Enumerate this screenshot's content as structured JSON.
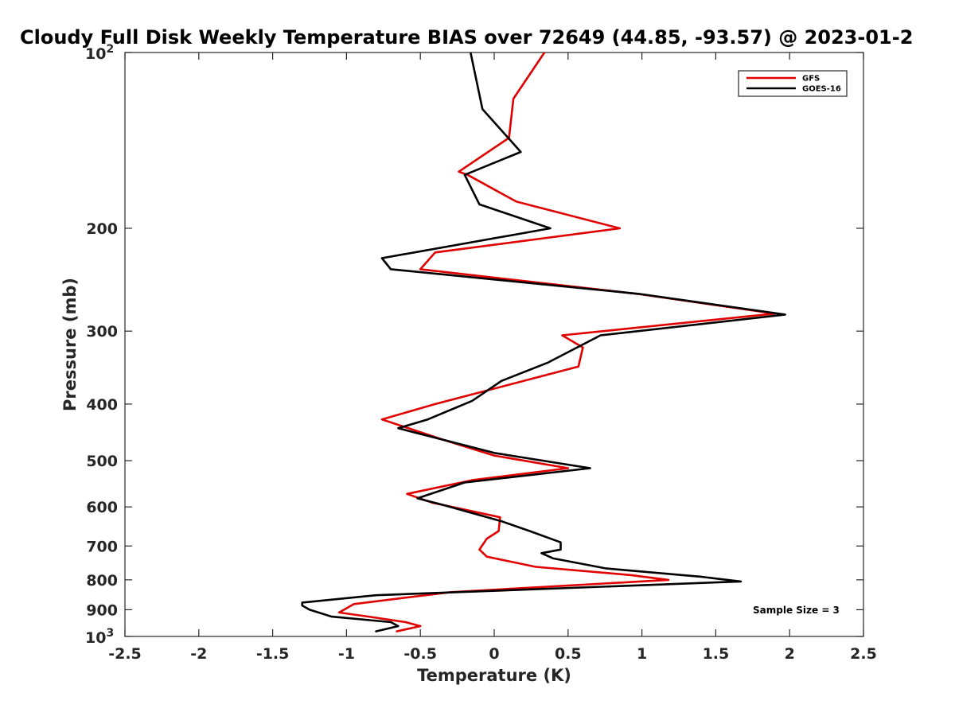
{
  "chart_data": {
    "type": "line",
    "title": "Cloudy Full Disk Weekly Temperature BIAS over 72649 (44.85, -93.57) @ 2023-01-2",
    "xlabel": "Temperature (K)",
    "ylabel": "Pressure (mb)",
    "xlim": [
      -2.5,
      2.5
    ],
    "ylim": [
      100,
      1000
    ],
    "y_scale": "log",
    "y_reversed": true,
    "x_ticks": [
      "-2.5",
      "-2",
      "-1.5",
      "-1",
      "-0.5",
      "0",
      "0.5",
      "1",
      "1.5",
      "2",
      "2.5"
    ],
    "y_ticks": [
      {
        "value": 100,
        "base": "10",
        "exp": "2"
      },
      {
        "value": 200,
        "label": "200"
      },
      {
        "value": 300,
        "label": "300"
      },
      {
        "value": 400,
        "label": "400"
      },
      {
        "value": 500,
        "label": "500"
      },
      {
        "value": 600,
        "label": "600"
      },
      {
        "value": 700,
        "label": "700"
      },
      {
        "value": 800,
        "label": "800"
      },
      {
        "value": 900,
        "label": "900"
      },
      {
        "value": 1000,
        "base": "10",
        "exp": "3"
      }
    ],
    "legend": "top-right",
    "grid": false,
    "annotation": "Sample Size = 3",
    "series": [
      {
        "name": "GFS",
        "color": "#e00000",
        "points": [
          [
            0.34,
            100
          ],
          [
            0.13,
            120
          ],
          [
            0.1,
            140
          ],
          [
            -0.24,
            160
          ],
          [
            -0.18,
            162
          ],
          [
            0.15,
            180
          ],
          [
            0.85,
            200
          ],
          [
            -0.4,
            220
          ],
          [
            -0.5,
            235
          ],
          [
            0.97,
            259
          ],
          [
            1.9,
            280
          ],
          [
            0.46,
            305
          ],
          [
            0.6,
            320
          ],
          [
            0.57,
            345
          ],
          [
            -0.4,
            400
          ],
          [
            -0.76,
            425
          ],
          [
            -0.35,
            460
          ],
          [
            0.0,
            490
          ],
          [
            0.5,
            515
          ],
          [
            -0.15,
            540
          ],
          [
            -0.59,
            570
          ],
          [
            -0.42,
            590
          ],
          [
            0.04,
            625
          ],
          [
            0.03,
            660
          ],
          [
            -0.05,
            680
          ],
          [
            -0.1,
            710
          ],
          [
            -0.05,
            730
          ],
          [
            0.28,
            760
          ],
          [
            0.92,
            785
          ],
          [
            1.18,
            800
          ],
          [
            -0.3,
            840
          ],
          [
            -0.95,
            880
          ],
          [
            -1.05,
            910
          ],
          [
            -0.85,
            925
          ],
          [
            -0.6,
            945
          ],
          [
            -0.5,
            960
          ],
          [
            -0.66,
            980
          ]
        ]
      },
      {
        "name": "GOES-16",
        "color": "#000000",
        "points": [
          [
            -0.16,
            100
          ],
          [
            -0.08,
            125
          ],
          [
            0.18,
            148
          ],
          [
            -0.2,
            162
          ],
          [
            -0.1,
            182
          ],
          [
            0.38,
            200
          ],
          [
            -0.76,
            225
          ],
          [
            -0.7,
            235
          ],
          [
            0.98,
            259
          ],
          [
            1.97,
            281
          ],
          [
            0.72,
            305
          ],
          [
            0.36,
            340
          ],
          [
            0.05,
            365
          ],
          [
            -0.15,
            395
          ],
          [
            -0.45,
            425
          ],
          [
            -0.65,
            440
          ],
          [
            0.0,
            485
          ],
          [
            0.65,
            515
          ],
          [
            -0.2,
            545
          ],
          [
            -0.52,
            580
          ],
          [
            -0.35,
            595
          ],
          [
            0.05,
            635
          ],
          [
            0.24,
            660
          ],
          [
            0.45,
            690
          ],
          [
            0.45,
            710
          ],
          [
            0.32,
            720
          ],
          [
            0.4,
            735
          ],
          [
            0.76,
            765
          ],
          [
            1.4,
            790
          ],
          [
            1.67,
            805
          ],
          [
            -0.8,
            850
          ],
          [
            -1.3,
            875
          ],
          [
            -1.3,
            885
          ],
          [
            -1.25,
            900
          ],
          [
            -1.1,
            925
          ],
          [
            -0.7,
            945
          ],
          [
            -0.65,
            960
          ],
          [
            -0.8,
            980
          ]
        ]
      }
    ]
  }
}
